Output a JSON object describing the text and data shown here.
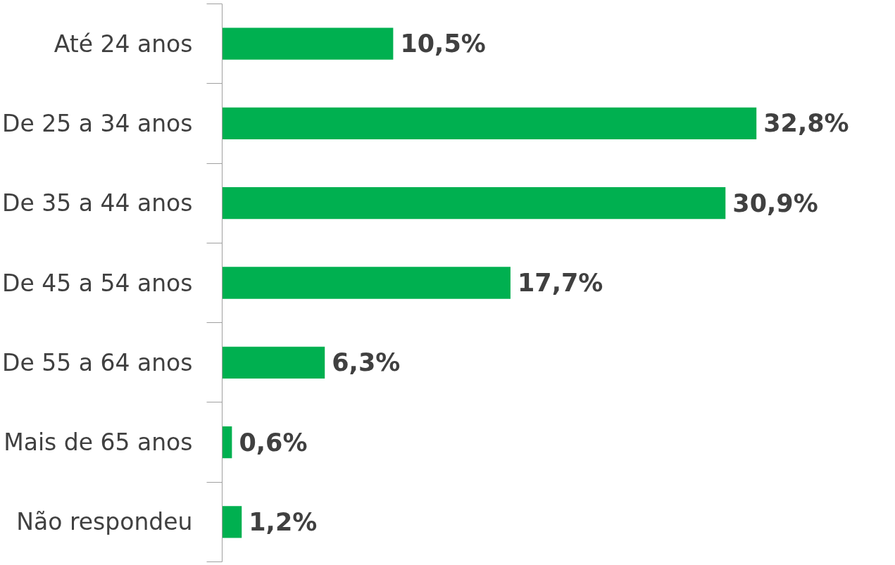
{
  "chart_data": {
    "type": "bar",
    "orientation": "horizontal",
    "categories": [
      "Até 24 anos",
      "De 25 a 34 anos",
      "De 35 a 44 anos",
      "De 45 a 54 anos",
      "De 55 a 64 anos",
      "Mais de 65 anos",
      "Não respondeu"
    ],
    "values": [
      10.5,
      32.8,
      30.9,
      17.7,
      6.3,
      0.6,
      1.2
    ],
    "value_labels": [
      "10,5%",
      "32,8%",
      "30,9%",
      "17,7%",
      "6,3%",
      "0,6%",
      "1,2%"
    ],
    "color": "#00b050"
  }
}
